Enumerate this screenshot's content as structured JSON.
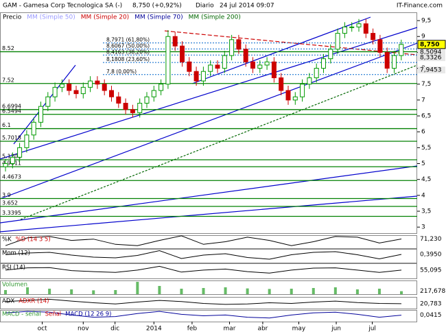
{
  "chart_data": {
    "type": "candlestick",
    "title": "GAM - Gamesa Corp Tecnologica SA (-)",
    "quote": "8,750 (+0,92%)",
    "period": "Diario",
    "datetime": "24 jul 2014 09:07",
    "source": "IT-Finance.com",
    "legend": [
      {
        "text": "Precio",
        "color": "#000000"
      },
      {
        "text": "MM (Simple 50)",
        "color": "#9999ff"
      },
      {
        "text": "MM (Simple 20)",
        "color": "#cc0000"
      },
      {
        "text": "MM (Simple 70)",
        "color": "#000099"
      },
      {
        "text": "MM (Simple 200)",
        "color": "#006600"
      }
    ],
    "ylim": [
      2.81,
      9.76
    ],
    "yticks": [
      {
        "value": 9.5,
        "label": "9,5"
      },
      9,
      {
        "value": 8.5,
        "label": "8,5"
      },
      8,
      {
        "value": 7.5,
        "label": "7,5"
      },
      7,
      {
        "value": 6.5,
        "label": "6,5"
      },
      6,
      {
        "value": 5.5,
        "label": "5,5"
      },
      5,
      {
        "value": 4.5,
        "label": "4,5"
      },
      4,
      {
        "value": 3.5,
        "label": "3,5"
      },
      3
    ],
    "month_ticks": [
      {
        "value": 5.2,
        "label": "oct"
      },
      {
        "value": 11,
        "label": "nov"
      },
      {
        "value": 15.5,
        "label": "dic"
      },
      {
        "value": 21,
        "label": "2014"
      },
      {
        "value": 26.4,
        "label": "feb"
      },
      {
        "value": 31.7,
        "label": "mar"
      },
      {
        "value": 36.4,
        "label": "abr"
      },
      {
        "value": 41.5,
        "label": "may"
      },
      {
        "value": 46.8,
        "label": "jun"
      },
      {
        "value": 51.9,
        "label": "jul"
      }
    ],
    "open": [
      4.9,
      5.0,
      5.2,
      5.5,
      5.9,
      6.3,
      6.8,
      7.1,
      7.4,
      7.5,
      7.3,
      7.2,
      7.4,
      7.6,
      7.5,
      7.3,
      7.1,
      6.9,
      6.7,
      6.6,
      6.9,
      7.1,
      7.3,
      7.5,
      9.0,
      8.7,
      8.2,
      7.9,
      7.6,
      7.9,
      8.1,
      8.0,
      8.4,
      8.9,
      8.6,
      8.2,
      8.0,
      8.1,
      8.2,
      7.7,
      7.3,
      7.0,
      7.1,
      7.5,
      7.7,
      8.0,
      8.3,
      8.6,
      9.1,
      9.3,
      9.3,
      9.4,
      9.1,
      8.9,
      8.5,
      8.0,
      8.4
    ],
    "high": [
      5.15,
      5.35,
      5.65,
      6.05,
      6.45,
      6.95,
      7.25,
      7.55,
      7.65,
      7.65,
      7.45,
      7.55,
      7.75,
      7.75,
      7.65,
      7.45,
      7.25,
      7.05,
      6.85,
      7.05,
      7.25,
      7.45,
      7.65,
      9.2,
      9.15,
      8.85,
      8.35,
      8.05,
      8.05,
      8.25,
      8.25,
      8.55,
      9.05,
      9.05,
      8.75,
      8.35,
      8.25,
      8.35,
      8.35,
      7.85,
      7.45,
      7.25,
      7.65,
      7.85,
      8.15,
      8.45,
      8.75,
      9.25,
      9.45,
      9.45,
      9.55,
      9.55,
      9.25,
      9.05,
      8.65,
      8.55,
      8.9
    ],
    "low": [
      4.75,
      4.85,
      5.05,
      5.35,
      5.75,
      6.15,
      6.65,
      6.95,
      7.25,
      7.15,
      7.05,
      7.05,
      7.25,
      7.35,
      7.15,
      6.95,
      6.75,
      6.55,
      6.45,
      6.45,
      6.75,
      6.95,
      7.15,
      7.35,
      8.55,
      8.05,
      7.75,
      7.45,
      7.45,
      7.75,
      7.85,
      7.85,
      8.25,
      8.45,
      8.05,
      7.85,
      7.85,
      7.95,
      7.55,
      7.15,
      6.85,
      6.85,
      6.95,
      7.35,
      7.55,
      7.85,
      8.15,
      8.45,
      8.95,
      9.15,
      9.15,
      8.95,
      8.75,
      8.35,
      7.85,
      7.85,
      8.25
    ],
    "close": [
      5.0,
      5.2,
      5.5,
      5.9,
      6.3,
      6.8,
      7.1,
      7.4,
      7.5,
      7.3,
      7.2,
      7.4,
      7.6,
      7.5,
      7.3,
      7.1,
      6.9,
      6.7,
      6.6,
      6.9,
      7.1,
      7.3,
      7.5,
      9.0,
      8.7,
      8.2,
      7.9,
      7.6,
      7.9,
      8.1,
      8.0,
      8.4,
      8.9,
      8.6,
      8.2,
      8.0,
      8.1,
      8.2,
      7.7,
      7.3,
      7.0,
      7.1,
      7.5,
      7.7,
      8.0,
      8.3,
      8.6,
      9.1,
      9.3,
      9.3,
      9.4,
      9.1,
      8.9,
      8.5,
      8.0,
      8.4,
      8.75
    ],
    "levels": [
      8.52,
      7.52,
      6.6994,
      6.5494,
      6.1,
      5.7018,
      5.1201,
      4.9011,
      4.4673,
      3.9,
      3.652,
      3.3395
    ],
    "fibonacci": [
      {
        "value": 8.7971,
        "label": "8,7971 (61,80%)"
      },
      {
        "value": 8.6067,
        "label": "8,6067 (50,00%)"
      },
      {
        "value": 8.4163,
        "label": "8,4163 (38,20%)"
      },
      {
        "value": 8.1808,
        "label": "8,1808 (23,60%)"
      },
      {
        "value": 7.8,
        "label": "7,8 (0,00%)"
      }
    ],
    "price_label": {
      "value": 8.75,
      "label": "8,750"
    },
    "markers": [
      {
        "value": 8.5094,
        "label": "8,5094"
      },
      {
        "value": 8.3326,
        "label": "8,3326"
      },
      {
        "value": 7.9453,
        "label": "7,9453"
      }
    ],
    "indicators": [
      {
        "labels": [
          {
            "text": "%K",
            "color": "#000000"
          },
          {
            "text": "%D (14 3 5)",
            "color": "#cc0000"
          }
        ],
        "kind": "line",
        "color": "#000000",
        "ylim": [
          0,
          100
        ],
        "values": [
          20,
          80,
          90,
          60,
          70,
          30,
          20,
          60,
          95,
          30,
          50,
          85,
          60,
          20,
          50,
          90,
          85,
          40,
          71.23
        ],
        "last": {
          "value": 71.23,
          "label": "71,230"
        }
      },
      {
        "labels": [
          {
            "text": "Mom (12)",
            "color": "#000000"
          }
        ],
        "kind": "line",
        "color": "#000000",
        "ylim": [
          -2,
          2
        ],
        "values": [
          0.3,
          0.8,
          1.0,
          0.2,
          -0.4,
          -0.6,
          0.1,
          1.5,
          -0.8,
          0.2,
          0.6,
          -0.5,
          -1.0,
          0.3,
          1.0,
          1.2,
          0.3,
          -0.9,
          0.395
        ],
        "last": {
          "value": 0.395,
          "label": "0,3950"
        }
      },
      {
        "labels": [
          {
            "text": "RSI (14)",
            "color": "#000000"
          }
        ],
        "kind": "line",
        "color": "#000000",
        "ylim": [
          0,
          100
        ],
        "values": [
          55,
          70,
          72,
          52,
          45,
          40,
          55,
          80,
          42,
          55,
          62,
          45,
          35,
          55,
          68,
          70,
          55,
          40,
          55.095
        ],
        "last": {
          "value": 55.095,
          "label": "55,095"
        }
      },
      {
        "labels": [
          {
            "text": "Volumen",
            "color": "#339933"
          }
        ],
        "kind": "bar",
        "color": "#66bb66",
        "ylim": [
          0,
          1000
        ],
        "values": [
          300,
          500,
          400,
          350,
          280,
          300,
          900,
          600,
          400,
          450,
          500,
          420,
          380,
          400,
          450,
          500,
          350,
          400,
          217.678
        ],
        "last": {
          "value": 217.678,
          "label": "217,678"
        }
      },
      {
        "labels": [
          {
            "text": "ADX",
            "color": "#000000"
          },
          {
            "text": "ADXR (14)",
            "color": "#cc0000"
          }
        ],
        "kind": "line",
        "color": "#000000",
        "ylim": [
          0,
          50
        ],
        "values": [
          30,
          35,
          40,
          32,
          25,
          20,
          28,
          35,
          30,
          22,
          18,
          20,
          25,
          22,
          28,
          32,
          26,
          22,
          20.783
        ],
        "last": {
          "value": 20.783,
          "label": "20,783"
        }
      },
      {
        "labels": [
          {
            "text": "MACD - señal",
            "color": "#339933"
          },
          {
            "text": "Señal",
            "color": "#cc0000"
          },
          {
            "text": "MACD (12 26 9)",
            "color": "#000099"
          }
        ],
        "kind": "line",
        "color": "#000099",
        "ylim": [
          -0.4,
          0.4
        ],
        "values": [
          0.2,
          0.3,
          0.25,
          0.05,
          -0.1,
          -0.05,
          0.15,
          0.3,
          0.1,
          0,
          0.05,
          -0.1,
          -0.15,
          0.05,
          0.2,
          0.25,
          0.1,
          -0.1,
          0.0415
        ],
        "last": {
          "value": 0.0415,
          "label": "0,0415"
        }
      }
    ]
  }
}
